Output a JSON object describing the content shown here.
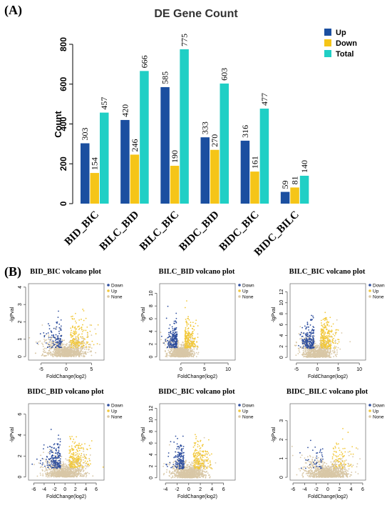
{
  "panels": {
    "a_label": "(A)",
    "b_label": "(B)"
  },
  "colors": {
    "up_bar": "#1b4fa0",
    "down_bar": "#f5c518",
    "total_bar": "#20cfc5",
    "down_point": "#2e4e9e",
    "up_point": "#f2c83a",
    "none_point": "#d8c7a6"
  },
  "chart_data": [
    {
      "type": "bar",
      "title": "DE Gene Count",
      "xlabel": "",
      "ylabel": "Count",
      "ylim": [
        0,
        800
      ],
      "yticks": [
        0,
        200,
        400,
        600,
        800
      ],
      "categories": [
        "BID_BIC",
        "BILC_BID",
        "BILC_BIC",
        "BIDC_BID",
        "BIDC_BIC",
        "BIDC_BILC"
      ],
      "series": [
        {
          "name": "Up",
          "values": [
            303,
            420,
            585,
            333,
            316,
            59
          ]
        },
        {
          "name": "Down",
          "values": [
            154,
            246,
            190,
            270,
            161,
            81
          ]
        },
        {
          "name": "Total",
          "values": [
            457,
            666,
            775,
            603,
            477,
            140
          ]
        }
      ],
      "legend": "top-right"
    },
    {
      "type": "scatter",
      "title": "BID_BIC volcano plot",
      "xlabel": "FoldChange(log2)",
      "ylabel": "-lgPval",
      "xlim": [
        -7.5,
        7.5
      ],
      "ylim": [
        -0.2,
        4.2
      ],
      "xticks": [
        -5,
        0,
        5
      ],
      "yticks": [
        0,
        1,
        2,
        3,
        4
      ],
      "legend_entries": [
        "Down",
        "Up",
        "None"
      ],
      "legend": "top-right",
      "cloud": {
        "none": 900,
        "down": 110,
        "up": 160
      }
    },
    {
      "type": "scatter",
      "title": "BILC_BID volcano plot",
      "xlabel": "FoldChange(log2)",
      "ylabel": "-lgPval",
      "xlim": [
        -4.5,
        11.5
      ],
      "ylim": [
        -0.5,
        11.5
      ],
      "xticks": [
        0,
        5,
        10
      ],
      "yticks": [
        0,
        2,
        4,
        6,
        8,
        10
      ],
      "legend_entries": [
        "Down",
        "Up",
        "None"
      ],
      "legend": "top-right",
      "cloud": {
        "none": 900,
        "down": 180,
        "up": 200
      }
    },
    {
      "type": "scatter",
      "title": "BILC_BIC volcano plot",
      "xlabel": "FoldChange(log2)",
      "ylabel": "-lgPval",
      "xlim": [
        -6.5,
        11.5
      ],
      "ylim": [
        -0.5,
        13.5
      ],
      "xticks": [
        -5,
        0,
        5,
        10
      ],
      "yticks": [
        0,
        2,
        4,
        6,
        8,
        10,
        12
      ],
      "legend_entries": [
        "Down",
        "Up",
        "None"
      ],
      "legend": "top-right",
      "cloud": {
        "none": 900,
        "down": 200,
        "up": 240
      }
    },
    {
      "type": "scatter",
      "title": "BIDC_BID volcano plot",
      "xlabel": "FoldChange(log2)",
      "ylabel": "-lgPval",
      "xlim": [
        -7,
        7.5
      ],
      "ylim": [
        -0.3,
        7
      ],
      "xticks": [
        -6,
        -4,
        -2,
        0,
        2,
        4,
        6
      ],
      "yticks": [
        0,
        2,
        4,
        6
      ],
      "legend_entries": [
        "Down",
        "Up",
        "None"
      ],
      "legend": "top-right",
      "cloud": {
        "none": 900,
        "down": 170,
        "up": 190
      }
    },
    {
      "type": "scatter",
      "title": "BIDC_BIC volcano plot",
      "xlabel": "FoldChange(log2)",
      "ylabel": "-lgPval",
      "xlim": [
        -5,
        8
      ],
      "ylim": [
        -0.4,
        12.8
      ],
      "xticks": [
        -4,
        -2,
        0,
        2,
        4,
        6
      ],
      "yticks": [
        0,
        2,
        4,
        6,
        8,
        10,
        12
      ],
      "legend_entries": [
        "Down",
        "Up",
        "None"
      ],
      "legend": "top-right",
      "cloud": {
        "none": 900,
        "down": 150,
        "up": 170
      }
    },
    {
      "type": "scatter",
      "title": "BIDC_BILC volcano plot",
      "xlabel": "FoldChange(log2)",
      "ylabel": "-lgPval",
      "xlim": [
        -6.5,
        6.5
      ],
      "ylim": [
        -0.15,
        3.9
      ],
      "xticks": [
        -6,
        -4,
        -2,
        0,
        2,
        4,
        6
      ],
      "yticks": [
        0,
        1,
        2,
        3
      ],
      "legend_entries": [
        "Down",
        "Up",
        "None"
      ],
      "legend": "top-right",
      "cloud": {
        "none": 900,
        "down": 40,
        "up": 70
      }
    }
  ]
}
